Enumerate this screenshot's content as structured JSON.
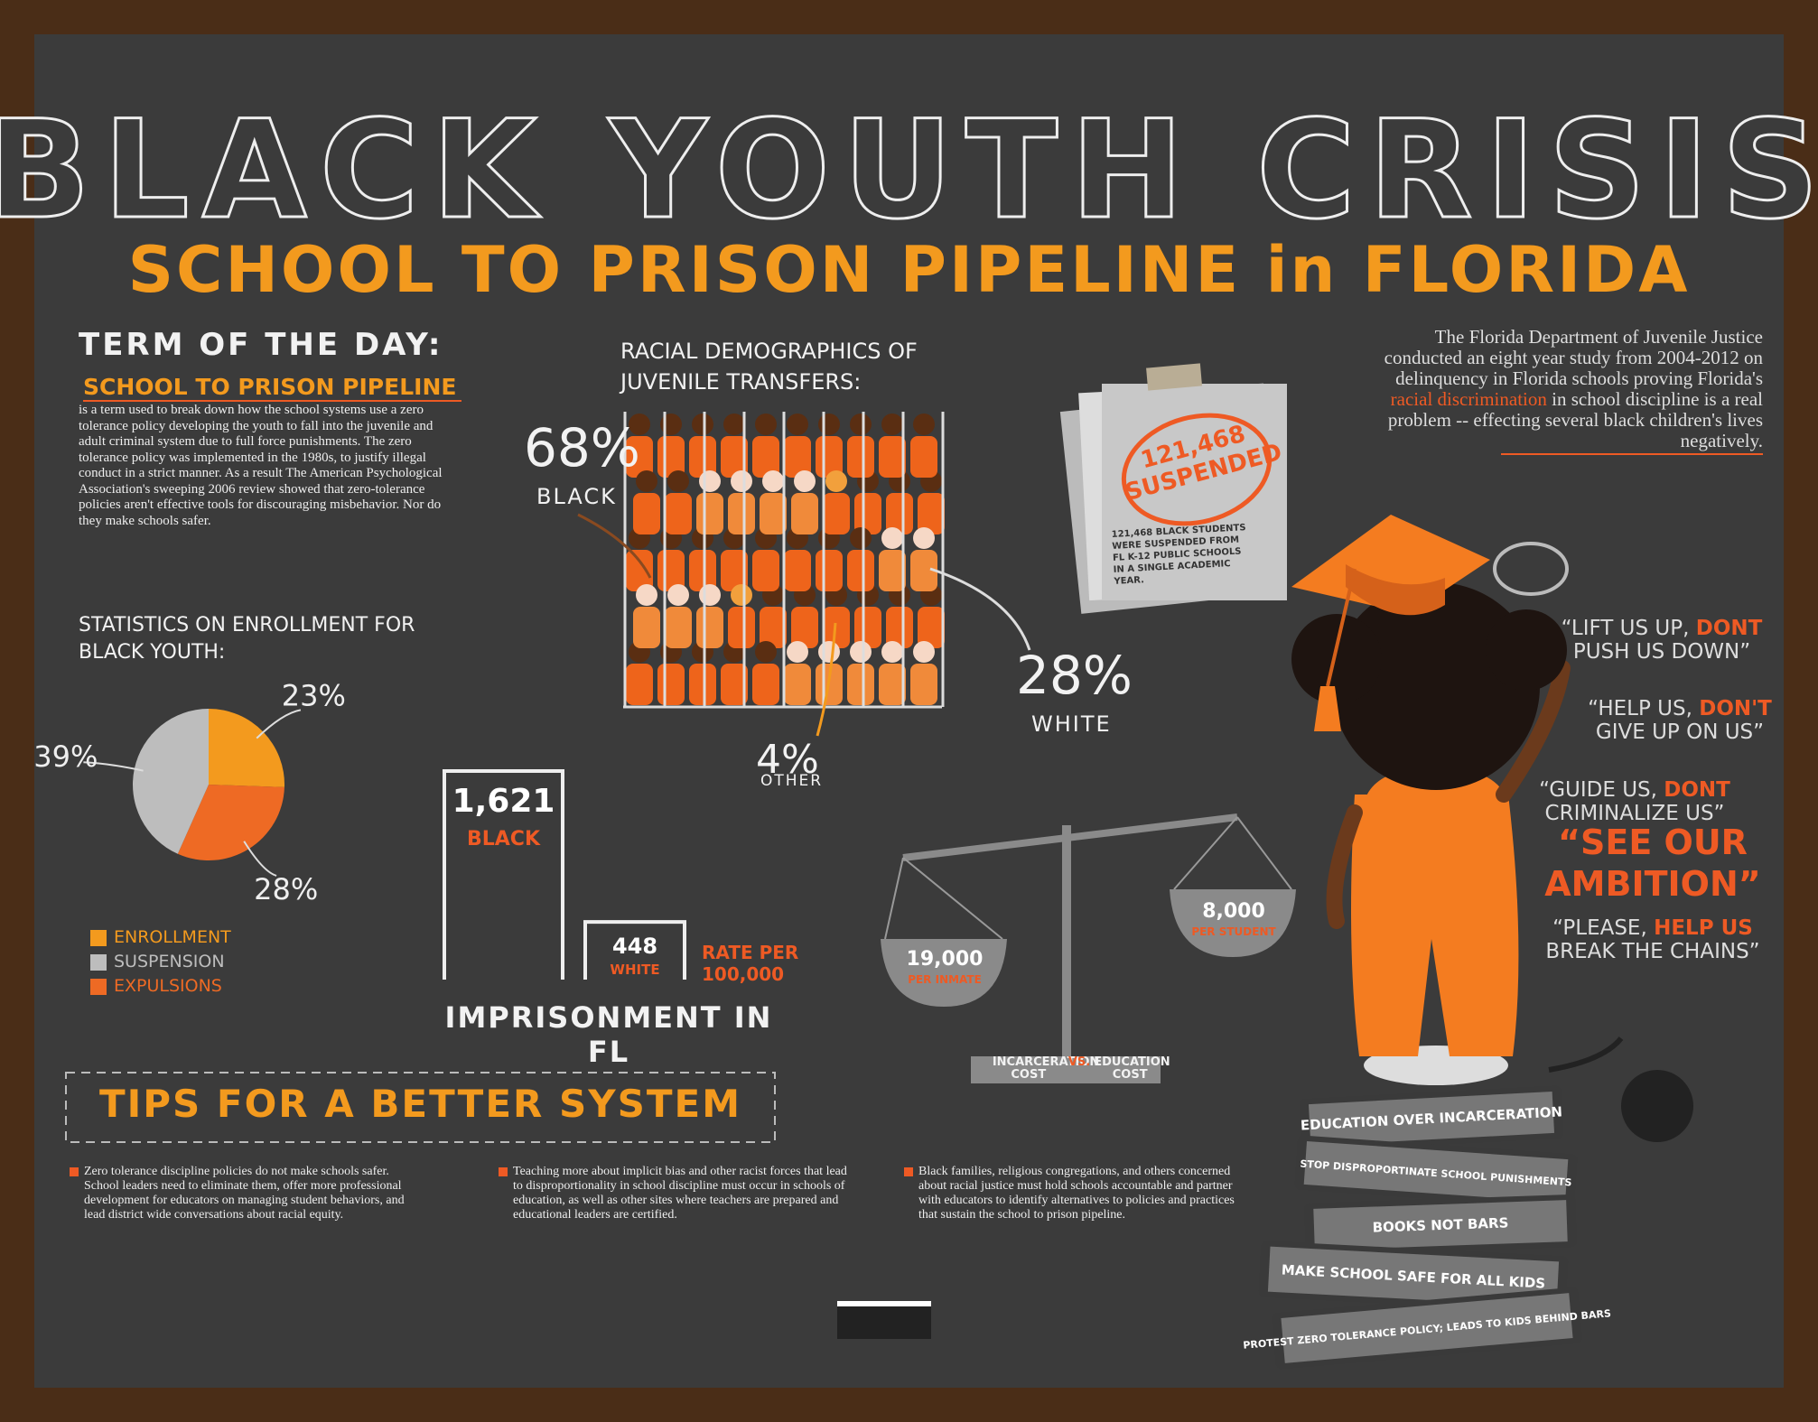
{
  "header": {
    "title": "BLACK YOUTH CRISIS",
    "subtitle": "SCHOOL TO PRISON PIPELINE in FLORIDA"
  },
  "term": {
    "heading": "TERM OF THE DAY:",
    "term": "SCHOOL TO PRISON PIPELINE",
    "definition": "is a term used to break down how the school systems use a zero tolerance policy developing the youth to fall into the juvenile and adult criminal system due to full force punishments. The zero tolerance policy was implemented in the 1980s, to justify illegal conduct in a strict manner. As a result The American Psychological Association's sweeping 2006 review showed that zero-tolerance policies aren't effective tools for discouraging misbehavior. Nor do they make schools safer."
  },
  "enrollment": {
    "title": "STATISTICS ON ENROLLMENT FOR BLACK YOUTH:",
    "categories": [
      "ENROLLMENT",
      "SUSPENSION",
      "EXPULSIONS"
    ],
    "values": [
      23,
      39,
      28
    ],
    "value_labels": [
      "23%",
      "39%",
      "28%"
    ],
    "colors": [
      "#f39a1e",
      "#bdbdbd",
      "#ee6a24"
    ]
  },
  "demographics": {
    "title": "RACIAL DEMOGRAPHICS OF JUVENILE TRANSFERS:",
    "categories": [
      "BLACK",
      "WHITE",
      "OTHER"
    ],
    "values": [
      68,
      28,
      4
    ],
    "value_labels": [
      "68%",
      "28%",
      "4%"
    ]
  },
  "imprisonment": {
    "title": "IMPRISONMENT IN FL",
    "categories": [
      "BLACK",
      "WHITE"
    ],
    "values": [
      1621,
      448
    ],
    "value_labels": [
      "1,621",
      "448"
    ],
    "unit": "RATE PER 100,000"
  },
  "study": {
    "before": "The Florida Department of Juvenile Justice conducted an eight year study from 2004-2012 on delinquency in Florida schools proving Florida's ",
    "highlight": "racial discrimination",
    "after": " in school discipline is a real problem -- effecting several black children's lives negatively."
  },
  "suspended": {
    "number": "121,468",
    "word": "SUSPENDED",
    "note": "121,468 BLACK STUDENTS WERE SUSPENDED FROM FL K-12 PUBLIC SCHOOLS IN A SINGLE ACADEMIC YEAR."
  },
  "cost": {
    "items": [
      {
        "amount": "19,000",
        "label": "PER INMATE"
      },
      {
        "amount": "8,000",
        "label": "PER STUDENT"
      }
    ],
    "left": "INCARCERATION COST",
    "vs": "VS.",
    "right": "EDUCATION COST"
  },
  "quotes": [
    [
      "“LIFT US UP, ",
      "DONT",
      " PUSH US DOWN”"
    ],
    [
      "“HELP US, ",
      "DON'T",
      " GIVE UP ON US”"
    ],
    [
      "“GUIDE US, ",
      "DONT",
      " CRIMINALIZE US”"
    ],
    [
      "“PLEASE, ",
      "HELP US",
      " BREAK THE CHAINS”"
    ]
  ],
  "ambition": "“SEE OUR AMBITION”",
  "books": [
    "EDUCATION OVER INCARCERATION",
    "STOP DISPROPORTINATE SCHOOL PUNISHMENTS",
    "BOOKS NOT BARS",
    "MAKE SCHOOL SAFE FOR ALL KIDS",
    "PROTEST ZERO TOLERANCE POLICY; LEADS TO KIDS BEHIND BARS"
  ],
  "tips": {
    "title": "TIPS FOR A BETTER SYSTEM",
    "items": [
      "Zero tolerance discipline policies do not make schools safer. School leaders need to eliminate them, offer more professional development for educators on managing student behaviors, and lead district wide conversations about racial equity.",
      "Teaching more about implicit bias and other racist forces that lead to disproportionality in school discipline must occur in schools of education, as well as other sites where teachers are prepared and educational leaders are certified.",
      "Black families, religious congregations, and others concerned about racial justice must hold schools accountable and partner with educators to identify alternatives to policies and practices that sustain the school to prison pipeline."
    ]
  }
}
